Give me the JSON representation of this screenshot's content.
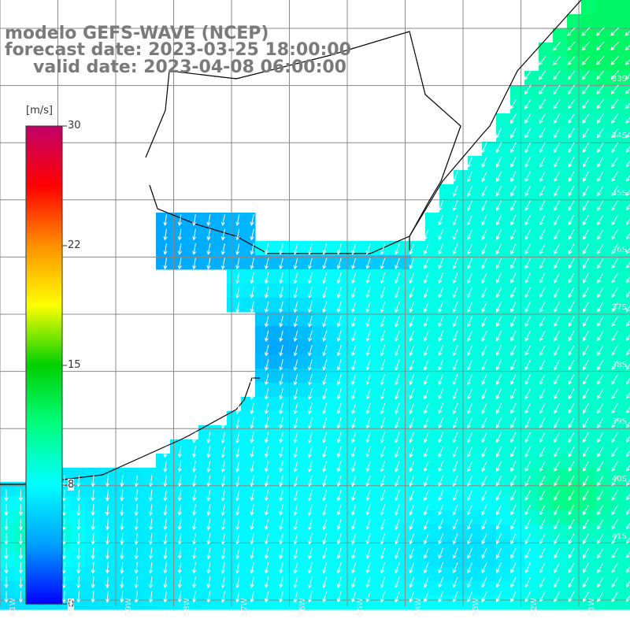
{
  "title": {
    "line1": "modelo GEFS-WAVE (NCEP)",
    "line2": "forecast date: 2023-03-25 18:00:00",
    "line3": "valid date: 2023-04-08 06:00:00"
  },
  "colorbar": {
    "unit": "[m/s]",
    "ticks": [
      "30",
      "22",
      "15",
      "8",
      "0"
    ],
    "range": [
      0,
      30
    ],
    "colors": [
      "#0000ff",
      "#00a0ff",
      "#00ffff",
      "#00ff80",
      "#00d000",
      "#ffff00",
      "#ff9000",
      "#ff0000",
      "#c0006a"
    ]
  },
  "lat_labels": [
    "33S",
    "34S",
    "35S",
    "36S",
    "37S",
    "38S",
    "39S",
    "40S",
    "41S"
  ],
  "lon_labels": [
    "61W",
    "60W",
    "59W",
    "58W",
    "57W",
    "56W",
    "55W",
    "54W",
    "53W",
    "52W",
    "51W"
  ],
  "colors": {
    "land": "#ffffff",
    "coastline": "#000000",
    "grid": "#888888",
    "arrow": "#ffffff",
    "title": "#7a7a7a"
  }
}
